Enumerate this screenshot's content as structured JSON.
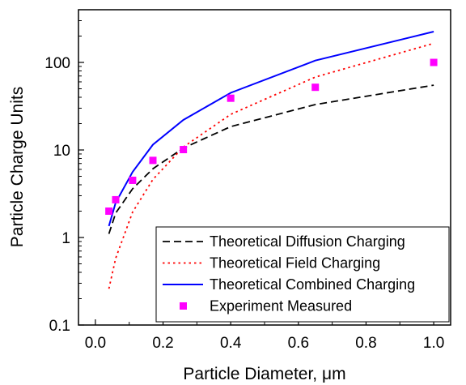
{
  "chart_data": {
    "type": "line",
    "xlabel": "Particle Diameter, μm",
    "ylabel": "Particle Charge Units",
    "xlim": [
      -0.05,
      1.05
    ],
    "ylim": [
      0.1,
      400
    ],
    "y_scale": "log",
    "x_ticks": [
      "0.0",
      "0.2",
      "0.4",
      "0.6",
      "0.8",
      "1.0"
    ],
    "y_ticks": [
      "0.1",
      "1",
      "10",
      "100"
    ],
    "legend_position": "bottom-right",
    "series": [
      {
        "name": "Theoretical Diffusion Charging",
        "style": "dashed",
        "color": "#000000",
        "x": [
          0.04,
          0.06,
          0.11,
          0.17,
          0.26,
          0.4,
          0.65,
          1.0
        ],
        "y": [
          1.1,
          1.9,
          3.6,
          6.1,
          10.5,
          18.5,
          33,
          55
        ]
      },
      {
        "name": "Theoretical Field Charging",
        "style": "dotted",
        "color": "#ff0000",
        "x": [
          0.04,
          0.06,
          0.11,
          0.17,
          0.26,
          0.4,
          0.65,
          1.0
        ],
        "y": [
          0.26,
          0.58,
          1.95,
          4.6,
          10.8,
          25.5,
          68,
          165
        ]
      },
      {
        "name": "Theoretical Combined Charging",
        "style": "solid",
        "color": "#0000ff",
        "x": [
          0.04,
          0.06,
          0.11,
          0.17,
          0.26,
          0.4,
          0.65,
          1.0
        ],
        "y": [
          1.35,
          2.5,
          5.6,
          11.5,
          22,
          45,
          105,
          225
        ]
      },
      {
        "name": "Experiment Measured",
        "style": "marker",
        "color": "#ff00ff",
        "x": [
          0.04,
          0.06,
          0.11,
          0.17,
          0.26,
          0.4,
          0.65,
          1.0
        ],
        "y": [
          2.0,
          2.7,
          4.5,
          7.6,
          10.1,
          39,
          52,
          100
        ]
      }
    ]
  }
}
